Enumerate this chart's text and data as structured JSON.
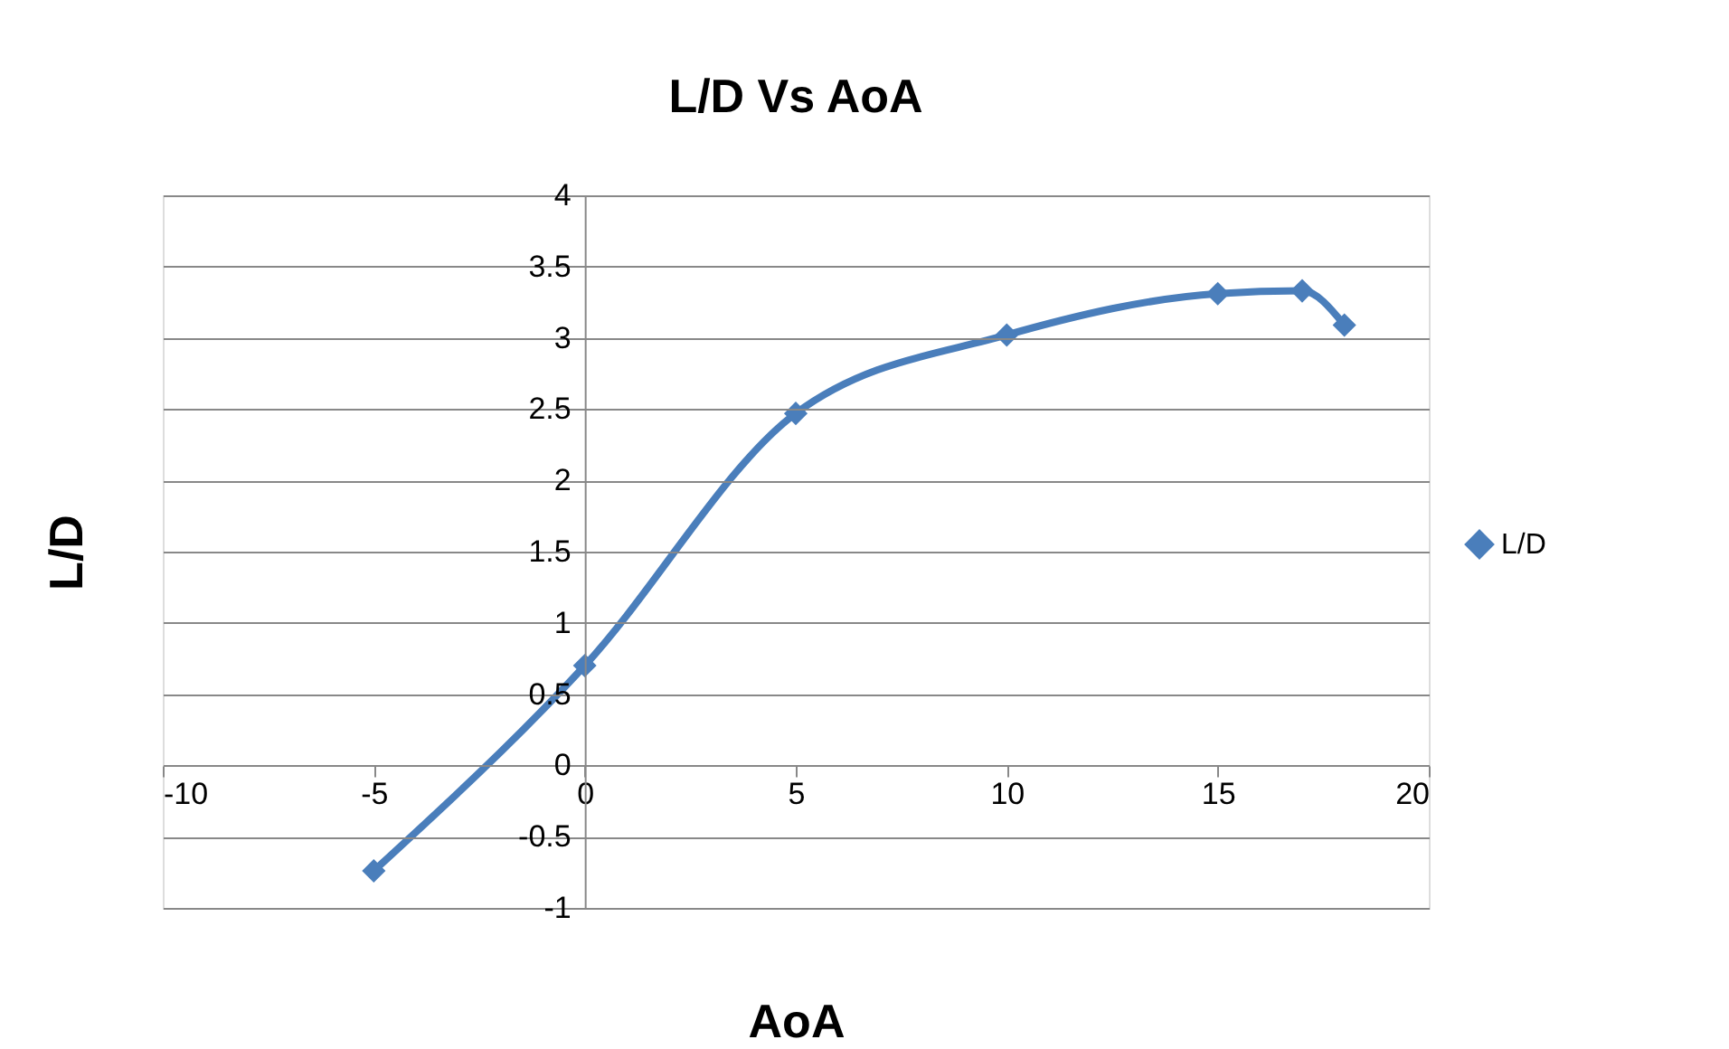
{
  "chart_data": {
    "type": "line",
    "title": "L/D Vs AoA",
    "xlabel": "AoA",
    "ylabel": "L/D",
    "x": [
      -5,
      0,
      5,
      10,
      15,
      17,
      18
    ],
    "series": [
      {
        "name": "L/D",
        "color": "#4a7ebb",
        "values": [
          -0.74,
          0.7,
          2.47,
          3.02,
          3.31,
          3.33,
          3.09
        ]
      }
    ],
    "xlim": [
      -10,
      20
    ],
    "xticks": [
      -10,
      -5,
      0,
      5,
      10,
      15,
      20
    ],
    "ylim": [
      -1,
      4
    ],
    "yticks": [
      -1,
      -0.5,
      0,
      0.5,
      1,
      1.5,
      2,
      2.5,
      3,
      3.5,
      4
    ],
    "grid": "y",
    "legend": "right",
    "marker": "diamond",
    "line_style": "solid"
  }
}
